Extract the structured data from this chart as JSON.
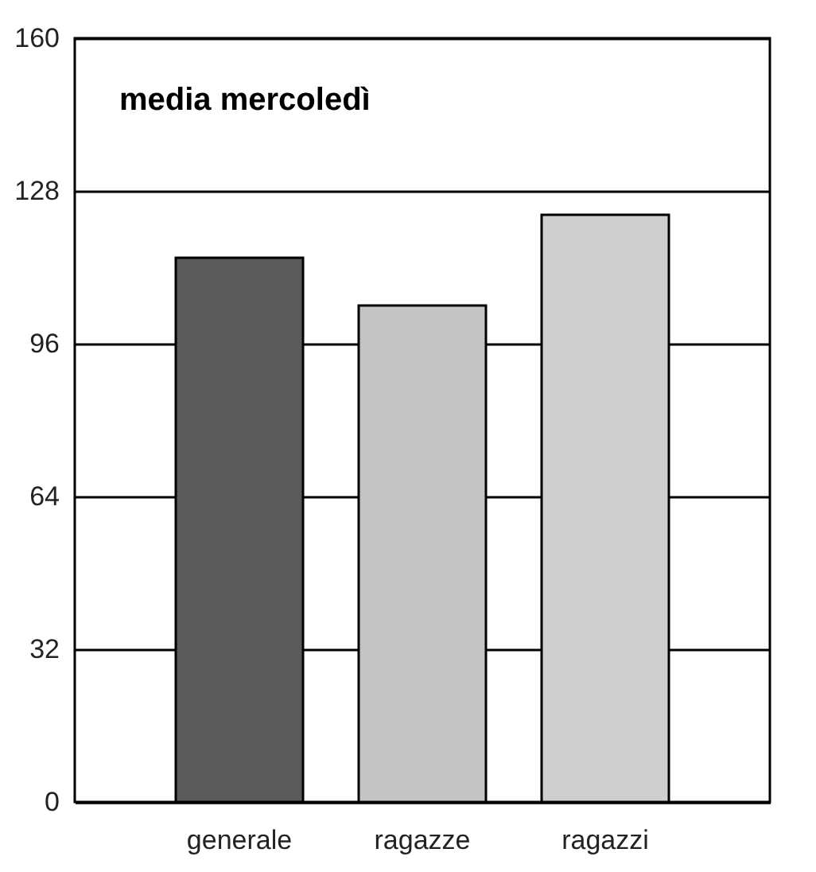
{
  "chart_data": {
    "type": "bar",
    "title": "media mercoledì",
    "categories": [
      "generale",
      "ragazze",
      "ragazzi"
    ],
    "values": [
      114,
      104,
      123
    ],
    "colors": [
      "#5a5a5a",
      "#c4c4c4",
      "#cfcfcf"
    ],
    "ylim": [
      0,
      160
    ],
    "yticks": [
      0,
      32,
      64,
      96,
      128,
      160
    ],
    "grid": "y"
  }
}
